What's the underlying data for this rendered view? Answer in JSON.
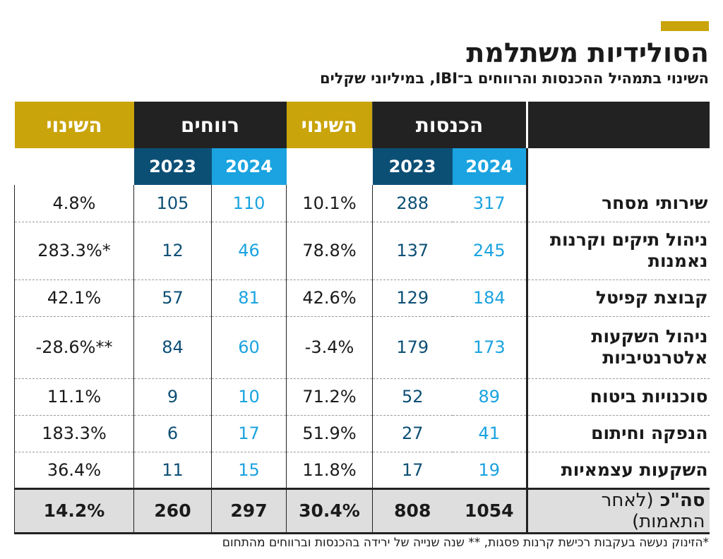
{
  "header": {
    "title": "הסולידיות משתלמת",
    "subtitle": "השינוי בתמהיל ההכנסות והרווחים ב־IBI, במיליוני שקלים",
    "accent_color": "#c9a40a"
  },
  "table": {
    "groups": {
      "income": "הכנסות",
      "profits": "רווחים",
      "change": "השינוי"
    },
    "years": {
      "current": "2024",
      "previous": "2023"
    },
    "colors": {
      "year_2024": "#1aa3e0",
      "year_2023": "#0c4f75",
      "header_dark": "#222222",
      "total_bg": "#dedede"
    },
    "rows": [
      {
        "label": "שירותי מסחר",
        "income_2024": "317",
        "income_2023": "288",
        "income_change": "10.1%",
        "profit_2024": "110",
        "profit_2023": "105",
        "profit_change": "4.8%"
      },
      {
        "label": "ניהול תיקים וקרנות נאמנות",
        "income_2024": "245",
        "income_2023": "137",
        "income_change": "78.8%",
        "profit_2024": "46",
        "profit_2023": "12",
        "profit_change": "283.3%*"
      },
      {
        "label": "קבוצת קפיטל",
        "income_2024": "184",
        "income_2023": "129",
        "income_change": "42.6%",
        "profit_2024": "81",
        "profit_2023": "57",
        "profit_change": "42.1%"
      },
      {
        "label": "ניהול השקעות אלטרנטיביות",
        "income_2024": "173",
        "income_2023": "179",
        "income_change": "-3.4%",
        "profit_2024": "60",
        "profit_2023": "84",
        "profit_change": "-28.6%**"
      },
      {
        "label": "סוכנויות ביטוח",
        "income_2024": "89",
        "income_2023": "52",
        "income_change": "71.2%",
        "profit_2024": "10",
        "profit_2023": "9",
        "profit_change": "11.1%"
      },
      {
        "label": "הנפקה וחיתום",
        "income_2024": "41",
        "income_2023": "27",
        "income_change": "51.9%",
        "profit_2024": "17",
        "profit_2023": "6",
        "profit_change": "183.3%"
      },
      {
        "label": "השקעות עצמאיות",
        "income_2024": "19",
        "income_2023": "17",
        "income_change": "11.8%",
        "profit_2024": "15",
        "profit_2023": "11",
        "profit_change": "36.4%"
      }
    ],
    "total": {
      "label": "סה\"כ",
      "note": "(לאחר התאמות)",
      "income_2024": "1054",
      "income_2023": "808",
      "income_change": "30.4%",
      "profit_2024": "297",
      "profit_2023": "260",
      "profit_change": "14.2%"
    }
  },
  "footnote": "*הזינוק נעשה בעקבות רכישת קרנות פסגות, ** שנה שנייה של ירידה בהכנסות וברווחים מהתחום",
  "chart_data": {
    "type": "table",
    "title": "הסולידיות משתלמת",
    "subtitle": "השינוי בתמהיל ההכנסות והרווחים ב־IBI, במיליוני שקלים",
    "columns": [
      "2024",
      "2023",
      "השינוי",
      "2024",
      "2023",
      "השינוי"
    ],
    "column_groups": [
      "הכנסות",
      "רווחים"
    ],
    "categories": [
      "שירותי מסחר",
      "ניהול תיקים וקרנות נאמנות",
      "קבוצת קפיטל",
      "ניהול השקעות אלטרנטיביות",
      "סוכנויות ביטוח",
      "הנפקה וחיתום",
      "השקעות עצמאיות",
      "סה\"כ (לאחר התאמות)"
    ],
    "series": [
      {
        "name": "הכנסות 2024",
        "values": [
          317,
          245,
          184,
          173,
          89,
          41,
          19,
          1054
        ]
      },
      {
        "name": "הכנסות 2023",
        "values": [
          288,
          137,
          129,
          179,
          52,
          27,
          17,
          808
        ]
      },
      {
        "name": "הכנסות השינוי",
        "values": [
          10.1,
          78.8,
          42.6,
          -3.4,
          71.2,
          51.9,
          11.8,
          30.4
        ]
      },
      {
        "name": "רווחים 2024",
        "values": [
          110,
          46,
          81,
          60,
          10,
          17,
          15,
          297
        ]
      },
      {
        "name": "רווחים 2023",
        "values": [
          105,
          12,
          57,
          84,
          9,
          6,
          11,
          260
        ]
      },
      {
        "name": "רווחים השינוי",
        "values": [
          4.8,
          283.3,
          42.1,
          -28.6,
          11.1,
          183.3,
          36.4,
          14.2
        ]
      }
    ]
  }
}
